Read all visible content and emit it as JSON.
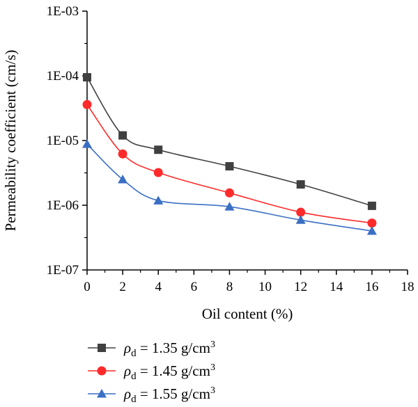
{
  "chart_data": {
    "type": "line",
    "xlabel": "Oil content (%)",
    "ylabel": "Permeability coefficient (cm/s)",
    "xlim": [
      0,
      18
    ],
    "ylim": [
      1e-07,
      0.001
    ],
    "yscale": "log",
    "x_ticks": [
      "0",
      "2",
      "4",
      "6",
      "8",
      "10",
      "12",
      "14",
      "16",
      "18"
    ],
    "y_ticks": [
      "1E-07",
      "1E-06",
      "1E-05",
      "1E-04",
      "1E-03"
    ],
    "grid": false,
    "legend_position": "bottom",
    "series": [
      {
        "label_symbol": "ρ",
        "label_subscript": "d",
        "label_text": " = 1.35 g/cm",
        "label_superscript": "3",
        "marker": "square",
        "color": "#404040",
        "x": [
          0,
          2,
          4,
          8,
          12,
          16
        ],
        "y": [
          9.5e-05,
          1.2e-05,
          7.2e-06,
          4e-06,
          2.1e-06,
          9.8e-07
        ]
      },
      {
        "label_symbol": "ρ",
        "label_subscript": "d",
        "label_text": " = 1.45 g/cm",
        "label_superscript": "3",
        "marker": "circle",
        "color": "#ff2a2a",
        "x": [
          0,
          2,
          4,
          8,
          12,
          16
        ],
        "y": [
          3.6e-05,
          6.2e-06,
          3.2e-06,
          1.55e-06,
          7.8e-07,
          5.3e-07
        ]
      },
      {
        "label_symbol": "ρ",
        "label_subscript": "d",
        "label_text": " = 1.55 g/cm",
        "label_superscript": "3",
        "marker": "triangle",
        "color": "#3a6fc4",
        "x": [
          0,
          2,
          4,
          8,
          12,
          16
        ],
        "y": [
          8.8e-06,
          2.5e-06,
          1.18e-06,
          9.5e-07,
          5.9e-07,
          4e-07
        ]
      }
    ]
  }
}
